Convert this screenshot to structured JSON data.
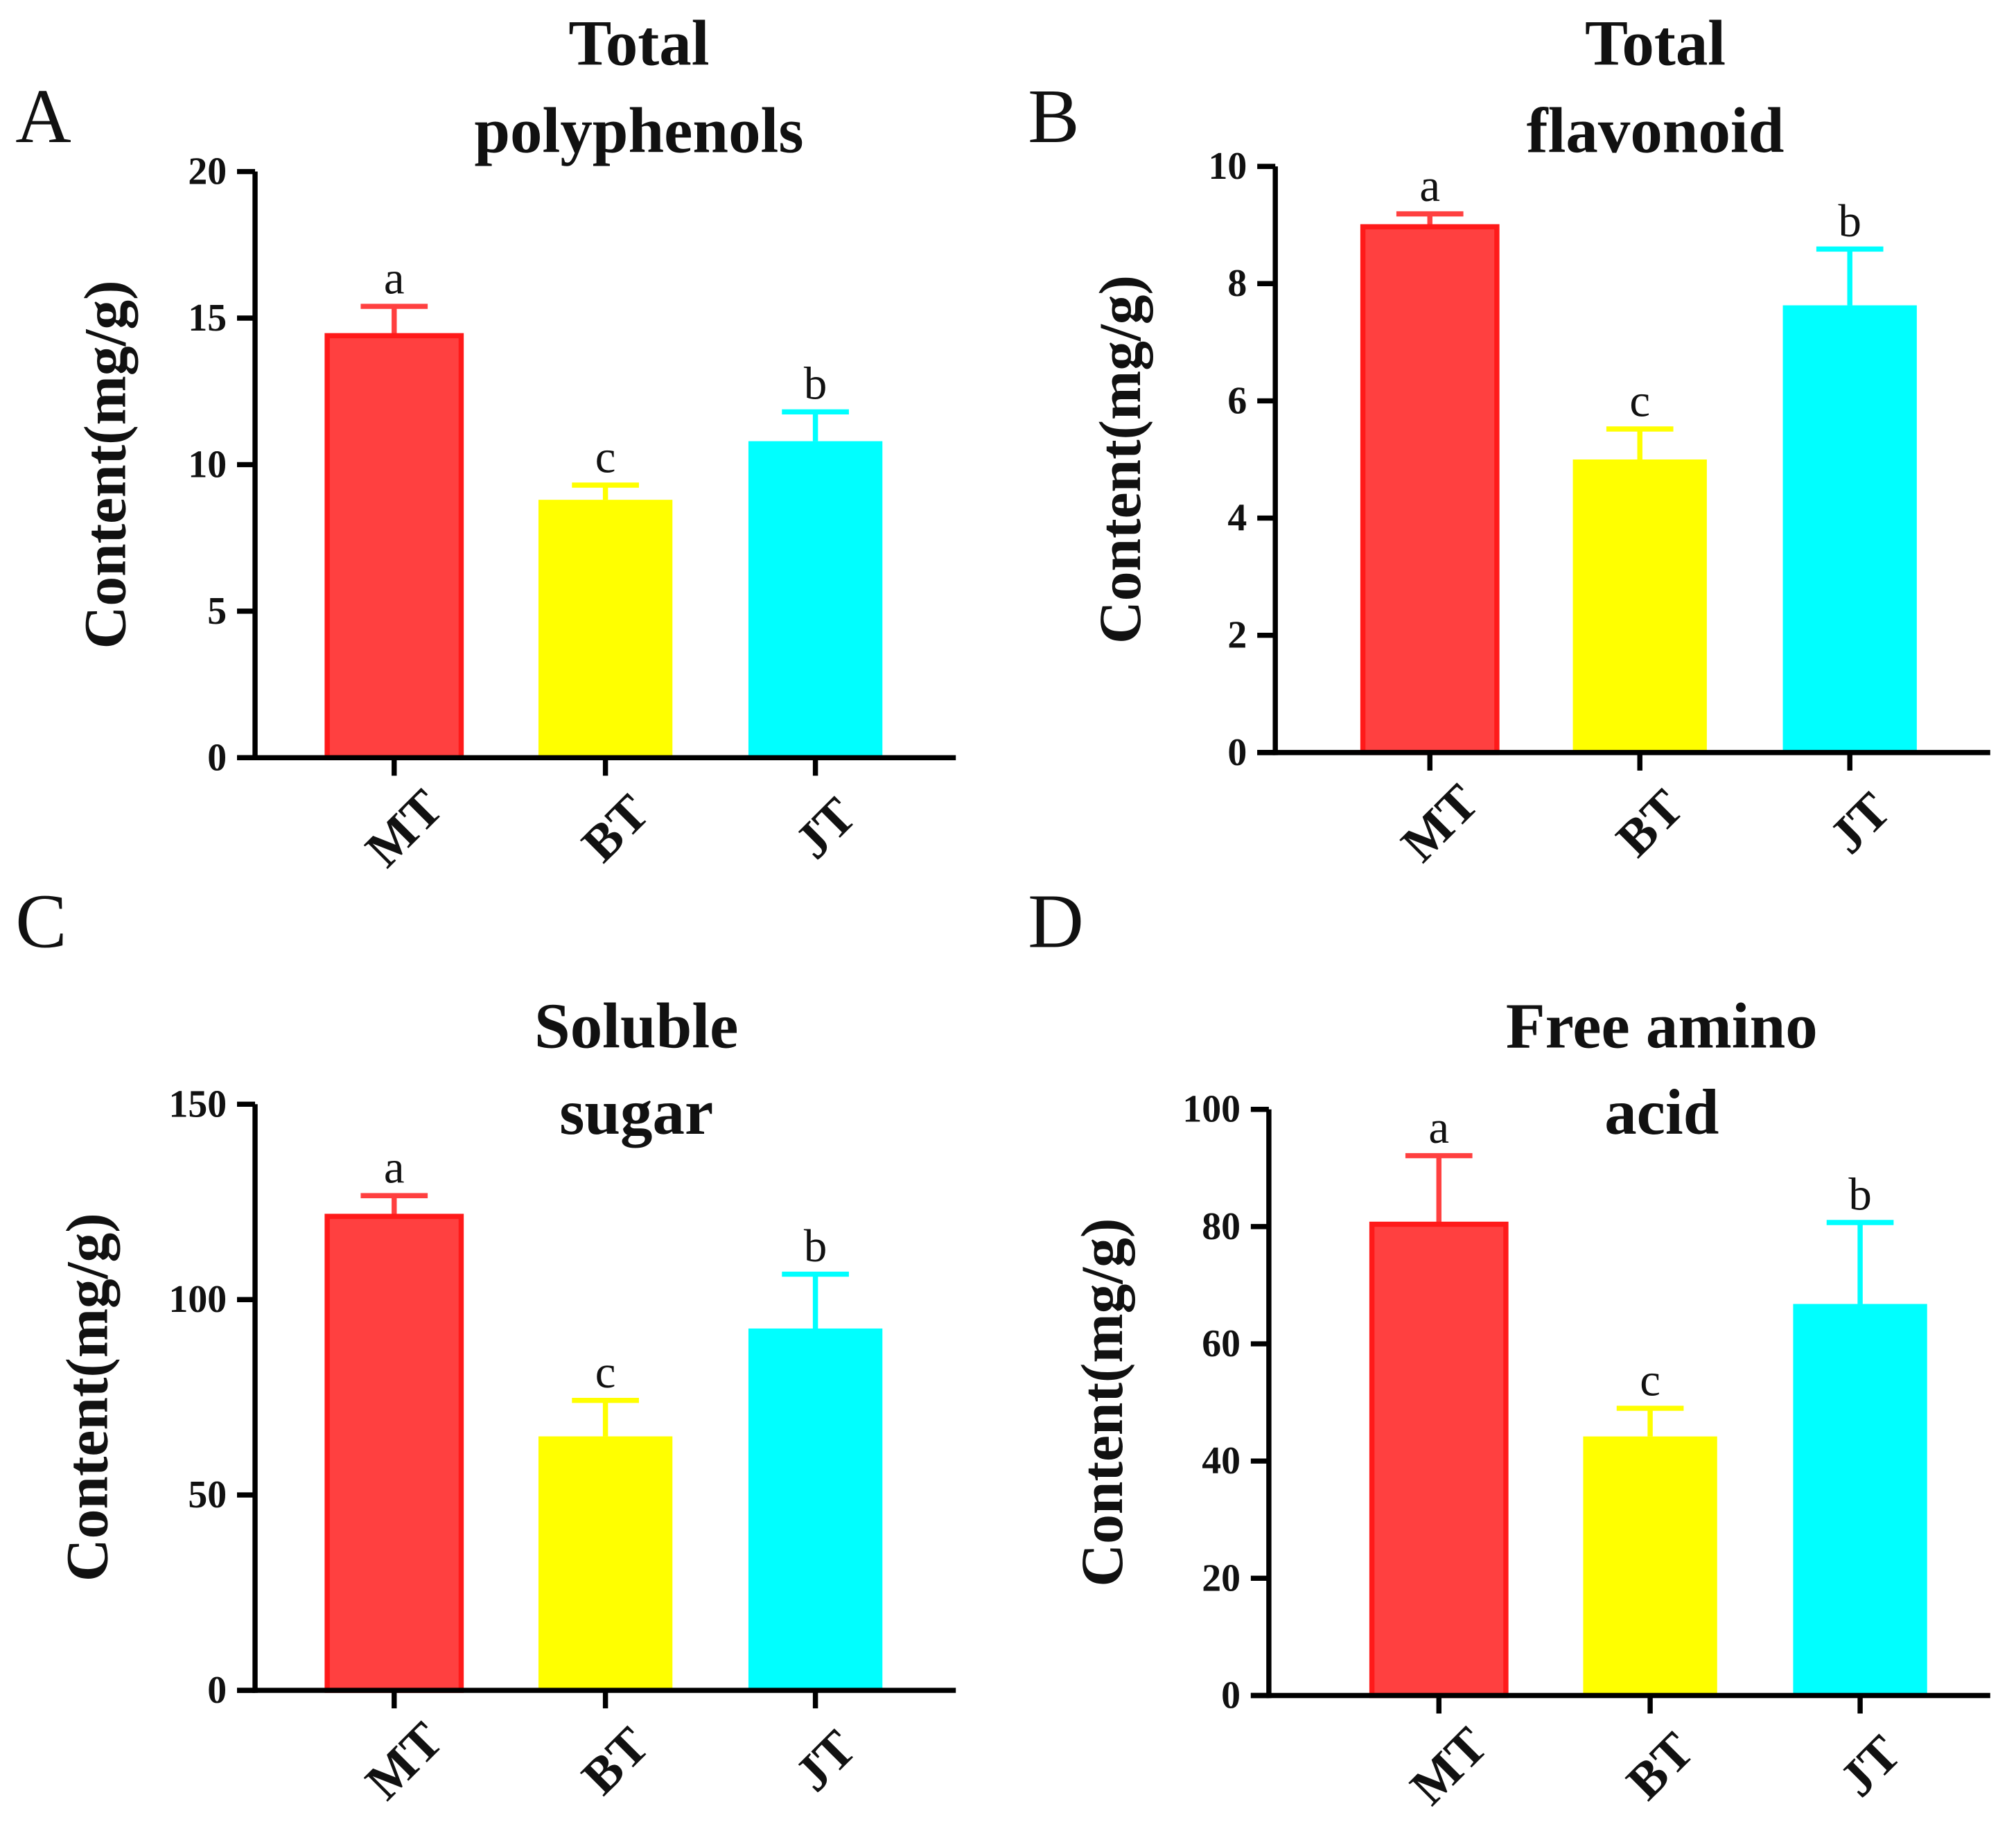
{
  "colors": {
    "MT": "#ff4040",
    "MT_edge": "#ff1a1a",
    "BT": "#ffff00",
    "JT": "#00ffff",
    "axis": "#000000"
  },
  "chart_data": [
    {
      "panel": "A",
      "type": "bar",
      "title": [
        "Total",
        "polyphenols"
      ],
      "ylabel": "Content(mg/g)",
      "xlabel": "",
      "categories": [
        "MT",
        "BT",
        "JT"
      ],
      "values": [
        14.4,
        8.8,
        10.8
      ],
      "errors": [
        1.0,
        0.5,
        1.0
      ],
      "significance": [
        "a",
        "c",
        "b"
      ],
      "ylim": [
        0,
        20
      ],
      "yticks": [
        0,
        5,
        10,
        15,
        20
      ]
    },
    {
      "panel": "B",
      "type": "bar",
      "title": [
        "Total",
        "flavonoid"
      ],
      "ylabel": "Content(mg/g)",
      "xlabel": "",
      "categories": [
        "MT",
        "BT",
        "JT"
      ],
      "values": [
        8.97,
        5.0,
        7.63
      ],
      "errors": [
        0.22,
        0.52,
        0.96
      ],
      "significance": [
        "a",
        "c",
        "b"
      ],
      "ylim": [
        0,
        10
      ],
      "yticks": [
        0,
        2,
        4,
        6,
        8,
        10
      ]
    },
    {
      "panel": "C",
      "type": "bar",
      "title": [
        "Soluble",
        "sugar"
      ],
      "ylabel": "Content(mg/g)",
      "xlabel": "",
      "categories": [
        "MT",
        "BT",
        "JT"
      ],
      "values": [
        121.3,
        65.0,
        92.6
      ],
      "errors": [
        5.3,
        9.2,
        13.9
      ],
      "significance": [
        "a",
        "c",
        "b"
      ],
      "ylim": [
        0,
        150
      ],
      "yticks": [
        0,
        50,
        100,
        150
      ]
    },
    {
      "panel": "D",
      "type": "bar",
      "title": [
        "Free amino",
        "acid"
      ],
      "ylabel": "Content(mg/g)",
      "xlabel": "",
      "categories": [
        "MT",
        "BT",
        "JT"
      ],
      "values": [
        80.4,
        44.2,
        66.8
      ],
      "errors": [
        11.7,
        4.8,
        13.9
      ],
      "significance": [
        "a",
        "c",
        "b"
      ],
      "ylim": [
        0,
        100
      ],
      "yticks": [
        0,
        20,
        40,
        60,
        80,
        100
      ]
    }
  ]
}
